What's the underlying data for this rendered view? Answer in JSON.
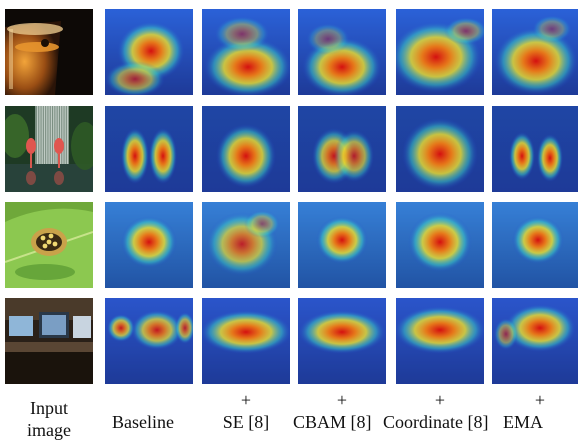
{
  "figure": {
    "columns": [
      {
        "id": "input",
        "caption_top": "Input",
        "caption_bottom": "image",
        "kind": "photo"
      },
      {
        "id": "baseline",
        "caption_top": "",
        "caption_bottom": "Baseline",
        "kind": "heatmap"
      },
      {
        "id": "se",
        "caption_top": "+",
        "caption_bottom": "SE [8]",
        "kind": "heatmap"
      },
      {
        "id": "cbam",
        "caption_top": "+",
        "caption_bottom": "CBAM [8]",
        "kind": "heatmap"
      },
      {
        "id": "coordinate",
        "caption_top": "+",
        "caption_bottom": "Coordinate [8]",
        "kind": "heatmap"
      },
      {
        "id": "ema",
        "caption_top": "+",
        "caption_bottom": "EMA",
        "kind": "heatmap"
      }
    ],
    "rows": [
      {
        "id": "cup",
        "subject": "glass cup of tea"
      },
      {
        "id": "flamingos",
        "subject": "flamingos by water"
      },
      {
        "id": "beetle",
        "subject": "spotted beetle on leaf"
      },
      {
        "id": "desk",
        "subject": "computer desk in room"
      }
    ]
  }
}
